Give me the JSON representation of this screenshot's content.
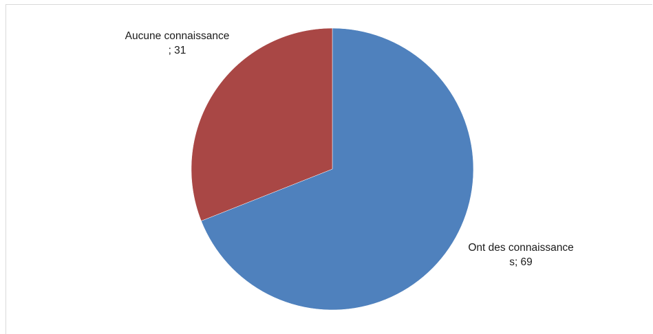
{
  "chart_data": {
    "type": "pie",
    "title": "",
    "start_angle_deg": 0,
    "direction": "clockwise",
    "legend": "none",
    "slices": [
      {
        "name": "Ont des connaissances",
        "value": 69,
        "color": "#4f81bd",
        "label_lines": [
          "Ont des connaissance",
          "s; 69"
        ]
      },
      {
        "name": "Aucune connaissance",
        "value": 31,
        "color": "#a94745",
        "label_lines": [
          "Aucune connaissance",
          "; 31"
        ]
      }
    ]
  }
}
